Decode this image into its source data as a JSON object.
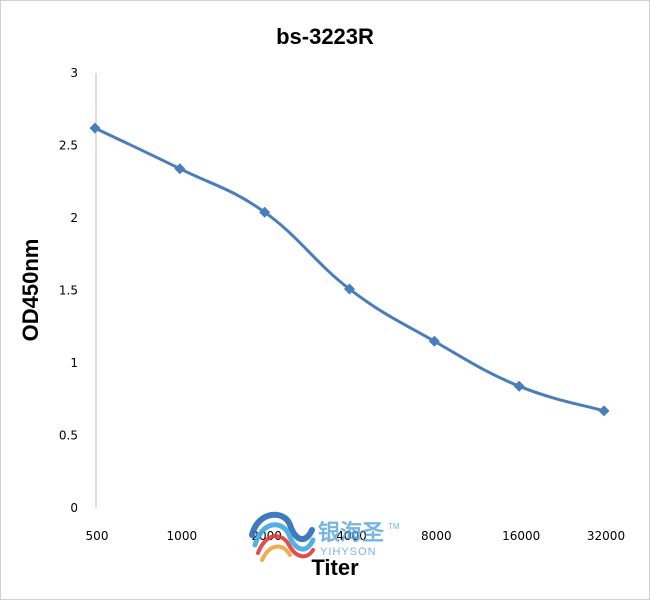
{
  "chart_data": {
    "type": "line",
    "title": "bs-3223R",
    "xlabel": "Titer",
    "ylabel": "OD450nm",
    "categories": [
      "500",
      "1000",
      "2000",
      "4000",
      "8000",
      "16000",
      "32000"
    ],
    "series": [
      {
        "values": [
          2.62,
          2.34,
          2.04,
          1.51,
          1.15,
          0.84,
          0.67
        ]
      }
    ],
    "ylim": [
      0,
      3
    ],
    "yticks": [
      "0",
      "0.5",
      "1",
      "1.5",
      "2",
      "2.5",
      "3"
    ],
    "grid": false,
    "legend": "none",
    "line_color": "#4a7ebb",
    "marker": "diamond"
  },
  "watermark": {
    "cn": "银海圣",
    "en": "YIHYSON",
    "tm": "TM",
    "colors": [
      "#2b6cb8",
      "#3fa9e0",
      "#e03a3a",
      "#f2a33a"
    ]
  }
}
